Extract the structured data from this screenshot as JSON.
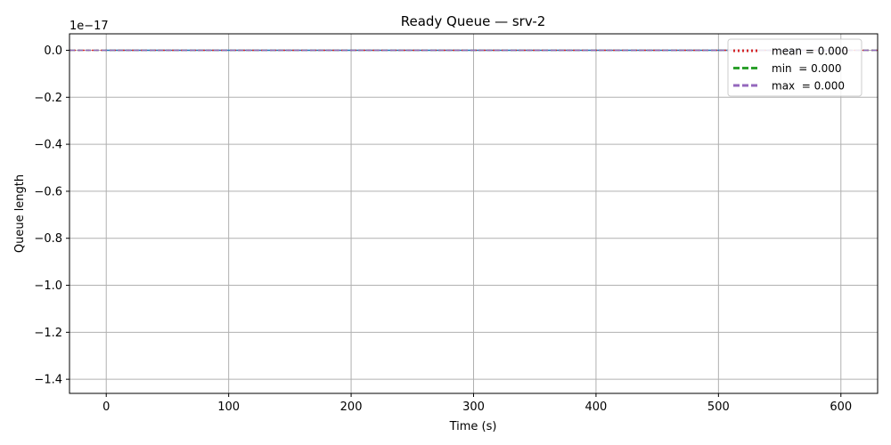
{
  "chart_data": {
    "type": "line",
    "title": "Ready Queue — srv-2",
    "xlabel": "Time (s)",
    "ylabel": "Queue length",
    "offset_text": "1e−17",
    "xlim": [
      -30,
      630
    ],
    "ylim": [
      -1.46,
      0.07
    ],
    "x_ticks": [
      0,
      100,
      200,
      300,
      400,
      500,
      600
    ],
    "x_tick_labels": [
      "0",
      "100",
      "200",
      "300",
      "400",
      "500",
      "600"
    ],
    "y_ticks": [
      0.0,
      -0.2,
      -0.4,
      -0.6,
      -0.8,
      -1.0,
      -1.2,
      -1.4
    ],
    "y_tick_labels": [
      "0.0",
      "−0.2",
      "−0.4",
      "−0.6",
      "−0.8",
      "−1.0",
      "−1.2",
      "−1.4"
    ],
    "grid": true,
    "legend_position": "top-right",
    "series": [
      {
        "x": [
          0,
          600
        ],
        "y": [
          0,
          0
        ],
        "color": "#1f77b4",
        "style": "solid"
      }
    ],
    "reference_lines": [
      {
        "name": "mean = 0.000",
        "y": 0,
        "color": "#d62728",
        "style": "dotted"
      },
      {
        "name": "min  = 0.000",
        "y": 0,
        "color": "#2ca02c",
        "style": "dashed"
      },
      {
        "name": "max  = 0.000",
        "y": 0,
        "color": "#9467bd",
        "style": "dashed"
      }
    ]
  }
}
